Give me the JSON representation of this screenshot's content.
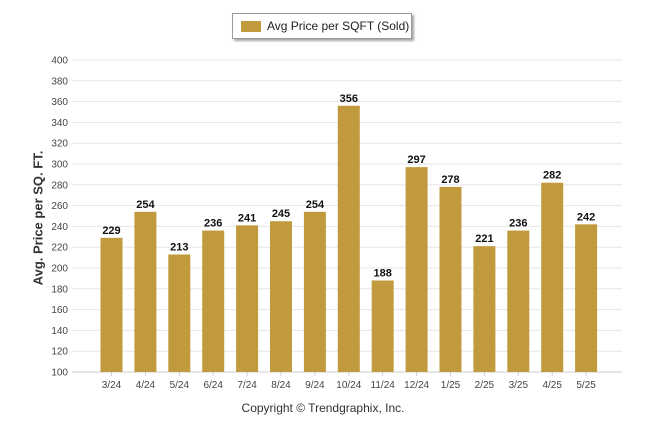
{
  "colors": {
    "bar": "#c19a3e",
    "grid": "#e6e6e6",
    "axis": "#cccccc"
  },
  "legend": {
    "label": "Avg Price per SQFT (Sold)"
  },
  "footer": {
    "copyright": "Copyright © Trendgraphix, Inc."
  },
  "chart_data": {
    "type": "bar",
    "ylabel": "Avg. Price per SQ. FT.",
    "ylim": [
      100,
      400
    ],
    "yticks": [
      100,
      120,
      140,
      160,
      180,
      200,
      220,
      240,
      260,
      280,
      300,
      320,
      340,
      360,
      380,
      400
    ],
    "grid": true,
    "legend_position": "top-center",
    "categories": [
      "3/24",
      "4/24",
      "5/24",
      "6/24",
      "7/24",
      "8/24",
      "9/24",
      "10/24",
      "11/24",
      "12/24",
      "1/25",
      "2/25",
      "3/25",
      "4/25",
      "5/25"
    ],
    "series": [
      {
        "name": "Avg Price per SQFT (Sold)",
        "values": [
          229,
          254,
          213,
          236,
          241,
          245,
          254,
          356,
          188,
          297,
          278,
          221,
          236,
          282,
          242
        ]
      }
    ]
  }
}
